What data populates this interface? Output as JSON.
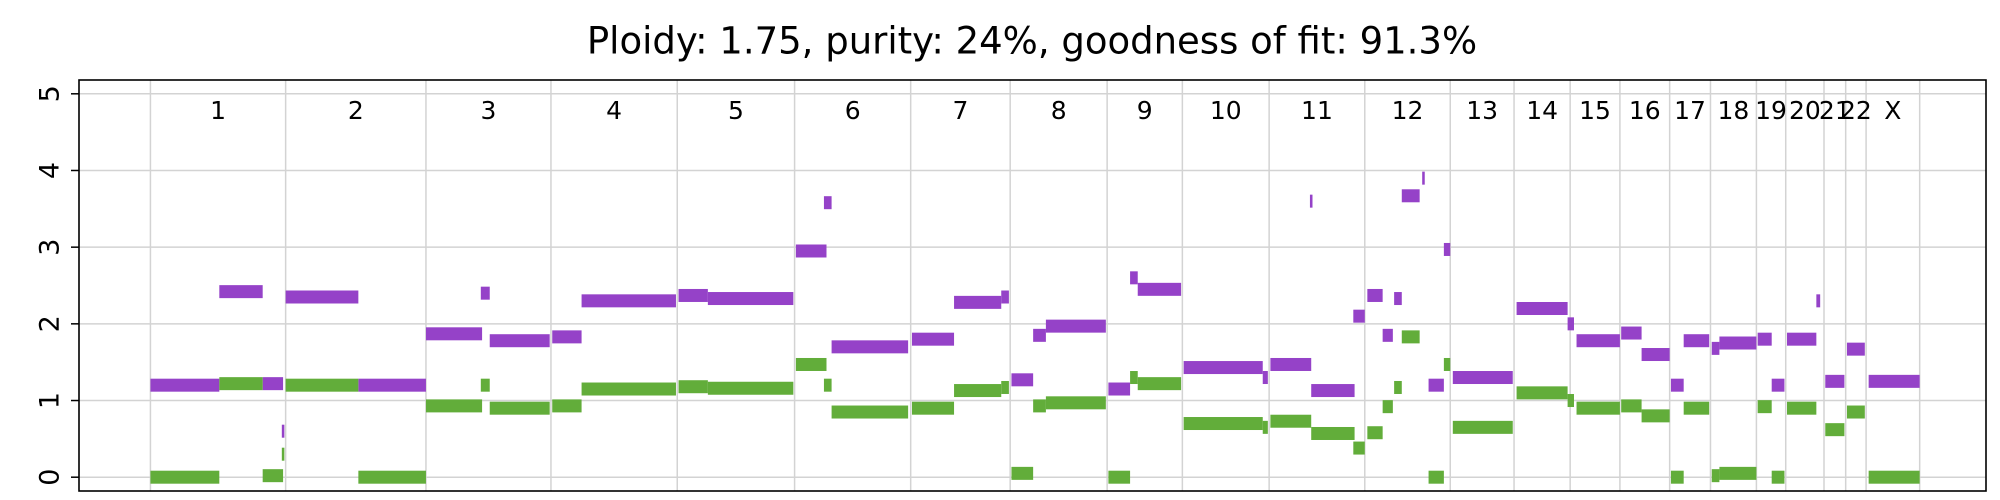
{
  "chart_data": {
    "type": "segments",
    "title": "Ploidy: 1.75, purity: 24%, goodness of fit: 91.3%",
    "categories": [
      "1",
      "2",
      "3",
      "4",
      "5",
      "6",
      "7",
      "8",
      "9",
      "10",
      "11",
      "12",
      "13",
      "14",
      "15",
      "16",
      "17",
      "18",
      "19",
      "20",
      "21",
      "22",
      "X"
    ],
    "boundaries": [
      0,
      106,
      216,
      314,
      413,
      505,
      596,
      674,
      750,
      809,
      877,
      952,
      1019,
      1069,
      1113,
      1152,
      1191,
      1223,
      1259,
      1282,
      1312,
      1329,
      1345,
      1387
    ],
    "xlim": [
      -56,
      1439
    ],
    "ylim": [
      -0.18,
      5.18
    ],
    "yticks": [
      0,
      1,
      2,
      3,
      4,
      5
    ],
    "grid": true,
    "series": [
      {
        "color": "#9542c8",
        "segments": [
          [
            0,
            54,
            1.2
          ],
          [
            54,
            88,
            2.42
          ],
          [
            88,
            104,
            1.22
          ],
          [
            103,
            105,
            0.6
          ],
          [
            106,
            163,
            2.35
          ],
          [
            163,
            216,
            1.2
          ],
          [
            216,
            260,
            1.87
          ],
          [
            259,
            266,
            2.4
          ],
          [
            266,
            313,
            1.78
          ],
          [
            315,
            338,
            1.83
          ],
          [
            338,
            412,
            2.3
          ],
          [
            414,
            437,
            2.37
          ],
          [
            437,
            504,
            2.33
          ],
          [
            506,
            530,
            2.95
          ],
          [
            528,
            534,
            3.58
          ],
          [
            534,
            594,
            1.7
          ],
          [
            597,
            630,
            1.8
          ],
          [
            630,
            667,
            2.28
          ],
          [
            667,
            673,
            2.35
          ],
          [
            675,
            692,
            1.27
          ],
          [
            692,
            702,
            1.85
          ],
          [
            702,
            749,
            1.97
          ],
          [
            751,
            768,
            1.15
          ],
          [
            768,
            774,
            2.6
          ],
          [
            774,
            808,
            2.45
          ],
          [
            810,
            872,
            1.43
          ],
          [
            872,
            876,
            1.3
          ],
          [
            878,
            910,
            1.47
          ],
          [
            909,
            911,
            3.6
          ],
          [
            910,
            944,
            1.13
          ],
          [
            943,
            952,
            2.1
          ],
          [
            954,
            966,
            2.37
          ],
          [
            966,
            974,
            1.85
          ],
          [
            975,
            981,
            2.33
          ],
          [
            981,
            995,
            3.67
          ],
          [
            997,
            999,
            3.9
          ],
          [
            1002,
            1014,
            1.2
          ],
          [
            1014,
            1019,
            2.97
          ],
          [
            1021,
            1068,
            1.3
          ],
          [
            1071,
            1111,
            2.2
          ],
          [
            1111,
            1116,
            2.0
          ],
          [
            1118,
            1152,
            1.78
          ],
          [
            1153,
            1169,
            1.88
          ],
          [
            1169,
            1191,
            1.6
          ],
          [
            1192,
            1202,
            1.2
          ],
          [
            1202,
            1222,
            1.78
          ],
          [
            1224,
            1230,
            1.68
          ],
          [
            1230,
            1259,
            1.75
          ],
          [
            1260,
            1271,
            1.8
          ],
          [
            1271,
            1281,
            1.2
          ],
          [
            1283,
            1306,
            1.8
          ],
          [
            1306,
            1309,
            2.3
          ],
          [
            1313,
            1328,
            1.25
          ],
          [
            1330,
            1344,
            1.67
          ],
          [
            1347,
            1387,
            1.25
          ]
        ]
      },
      {
        "color": "#62ad3a",
        "segments": [
          [
            0,
            54,
            0
          ],
          [
            54,
            88,
            1.22
          ],
          [
            88,
            104,
            0.02
          ],
          [
            103,
            105,
            0.3
          ],
          [
            106,
            163,
            1.2
          ],
          [
            163,
            216,
            0
          ],
          [
            216,
            260,
            0.93
          ],
          [
            259,
            266,
            1.2
          ],
          [
            266,
            313,
            0.9
          ],
          [
            315,
            338,
            0.93
          ],
          [
            338,
            412,
            1.15
          ],
          [
            414,
            437,
            1.18
          ],
          [
            437,
            504,
            1.16
          ],
          [
            506,
            530,
            1.47
          ],
          [
            528,
            534,
            1.2
          ],
          [
            534,
            594,
            0.85
          ],
          [
            597,
            630,
            0.9
          ],
          [
            630,
            667,
            1.13
          ],
          [
            667,
            673,
            1.17
          ],
          [
            675,
            692,
            0.05
          ],
          [
            692,
            702,
            0.93
          ],
          [
            702,
            749,
            0.97
          ],
          [
            751,
            768,
            0
          ],
          [
            768,
            774,
            1.3
          ],
          [
            774,
            808,
            1.22
          ],
          [
            810,
            872,
            0.7
          ],
          [
            872,
            876,
            0.65
          ],
          [
            878,
            910,
            0.73
          ],
          [
            910,
            944,
            0.57
          ],
          [
            943,
            952,
            0.38
          ],
          [
            954,
            966,
            0.58
          ],
          [
            966,
            974,
            0.92
          ],
          [
            975,
            981,
            1.17
          ],
          [
            981,
            995,
            1.83
          ],
          [
            1002,
            1014,
            0
          ],
          [
            1014,
            1019,
            1.47
          ],
          [
            1021,
            1068,
            0.65
          ],
          [
            1071,
            1111,
            1.1
          ],
          [
            1111,
            1116,
            1.0
          ],
          [
            1118,
            1152,
            0.9
          ],
          [
            1153,
            1169,
            0.93
          ],
          [
            1169,
            1191,
            0.8
          ],
          [
            1192,
            1202,
            0
          ],
          [
            1202,
            1222,
            0.9
          ],
          [
            1224,
            1230,
            0.02
          ],
          [
            1230,
            1259,
            0.05
          ],
          [
            1260,
            1271,
            0.92
          ],
          [
            1271,
            1281,
            0
          ],
          [
            1283,
            1306,
            0.9
          ],
          [
            1313,
            1328,
            0.62
          ],
          [
            1330,
            1344,
            0.85
          ],
          [
            1347,
            1387,
            0
          ]
        ]
      }
    ]
  }
}
